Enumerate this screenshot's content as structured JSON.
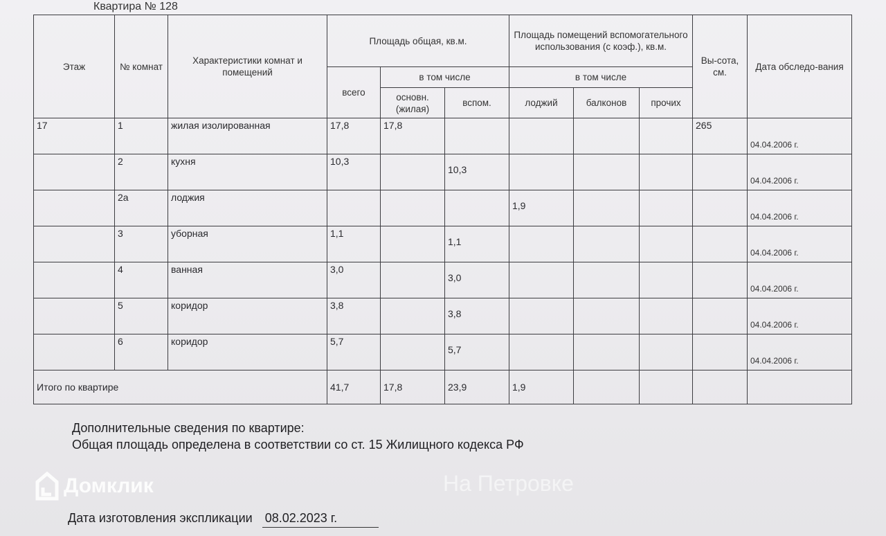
{
  "title": "Квартира № 128",
  "headers": {
    "floor": "Этаж",
    "room_no": "№ комнат",
    "characteristics": "Характеристики комнат и помещений",
    "total_area": "Площадь общая, кв.м.",
    "all": "всего",
    "incl": "в том числе",
    "main": "основн. (жилая)",
    "aux": "вспом.",
    "aux_area": "Площадь помещений вспомогательного использования (с коэф.), кв.м.",
    "incl2": "в том числе",
    "loggia": "лоджий",
    "balcony": "балконов",
    "other": "прочих",
    "height": "Вы-сота, см.",
    "date": "Дата обследо-вания"
  },
  "rows": [
    {
      "floor": "17",
      "no": "1",
      "name": "жилая изолированная",
      "all": "17,8",
      "main": "17,8",
      "aux": "",
      "loggia": "",
      "balcony": "",
      "other": "",
      "height": "265",
      "date": "04.04.2006 г."
    },
    {
      "floor": "",
      "no": "2",
      "name": "кухня",
      "all": "10,3",
      "main": "",
      "aux": "10,3",
      "loggia": "",
      "balcony": "",
      "other": "",
      "height": "",
      "date": "04.04.2006 г."
    },
    {
      "floor": "",
      "no": "2а",
      "name": "лоджия",
      "all": "",
      "main": "",
      "aux": "",
      "loggia": "1,9",
      "balcony": "",
      "other": "",
      "height": "",
      "date": "04.04.2006 г."
    },
    {
      "floor": "",
      "no": "3",
      "name": "уборная",
      "all": "1,1",
      "main": "",
      "aux": "1,1",
      "loggia": "",
      "balcony": "",
      "other": "",
      "height": "",
      "date": "04.04.2006 г."
    },
    {
      "floor": "",
      "no": "4",
      "name": "ванная",
      "all": "3,0",
      "main": "",
      "aux": "3,0",
      "loggia": "",
      "balcony": "",
      "other": "",
      "height": "",
      "date": "04.04.2006 г."
    },
    {
      "floor": "",
      "no": "5",
      "name": "коридор",
      "all": "3,8",
      "main": "",
      "aux": "3,8",
      "loggia": "",
      "balcony": "",
      "other": "",
      "height": "",
      "date": "04.04.2006 г."
    },
    {
      "floor": "",
      "no": "6",
      "name": "коридор",
      "all": "5,7",
      "main": "",
      "aux": "5,7",
      "loggia": "",
      "balcony": "",
      "other": "",
      "height": "",
      "date": "04.04.2006 г."
    }
  ],
  "total": {
    "label": "Итого по квартире",
    "all": "41,7",
    "main": "17,8",
    "aux": "23,9",
    "loggia": "1,9"
  },
  "notes": {
    "heading": "Дополнительные сведения по квартире:",
    "text": "Общая площадь определена в соответствии со ст. 15 Жилищного кодекса РФ"
  },
  "made": {
    "label": "Дата изготовления экспликации",
    "value": "08.02.2023 г."
  },
  "watermarks": {
    "domclick": "Домклик",
    "petrovka": "На Петровке"
  }
}
